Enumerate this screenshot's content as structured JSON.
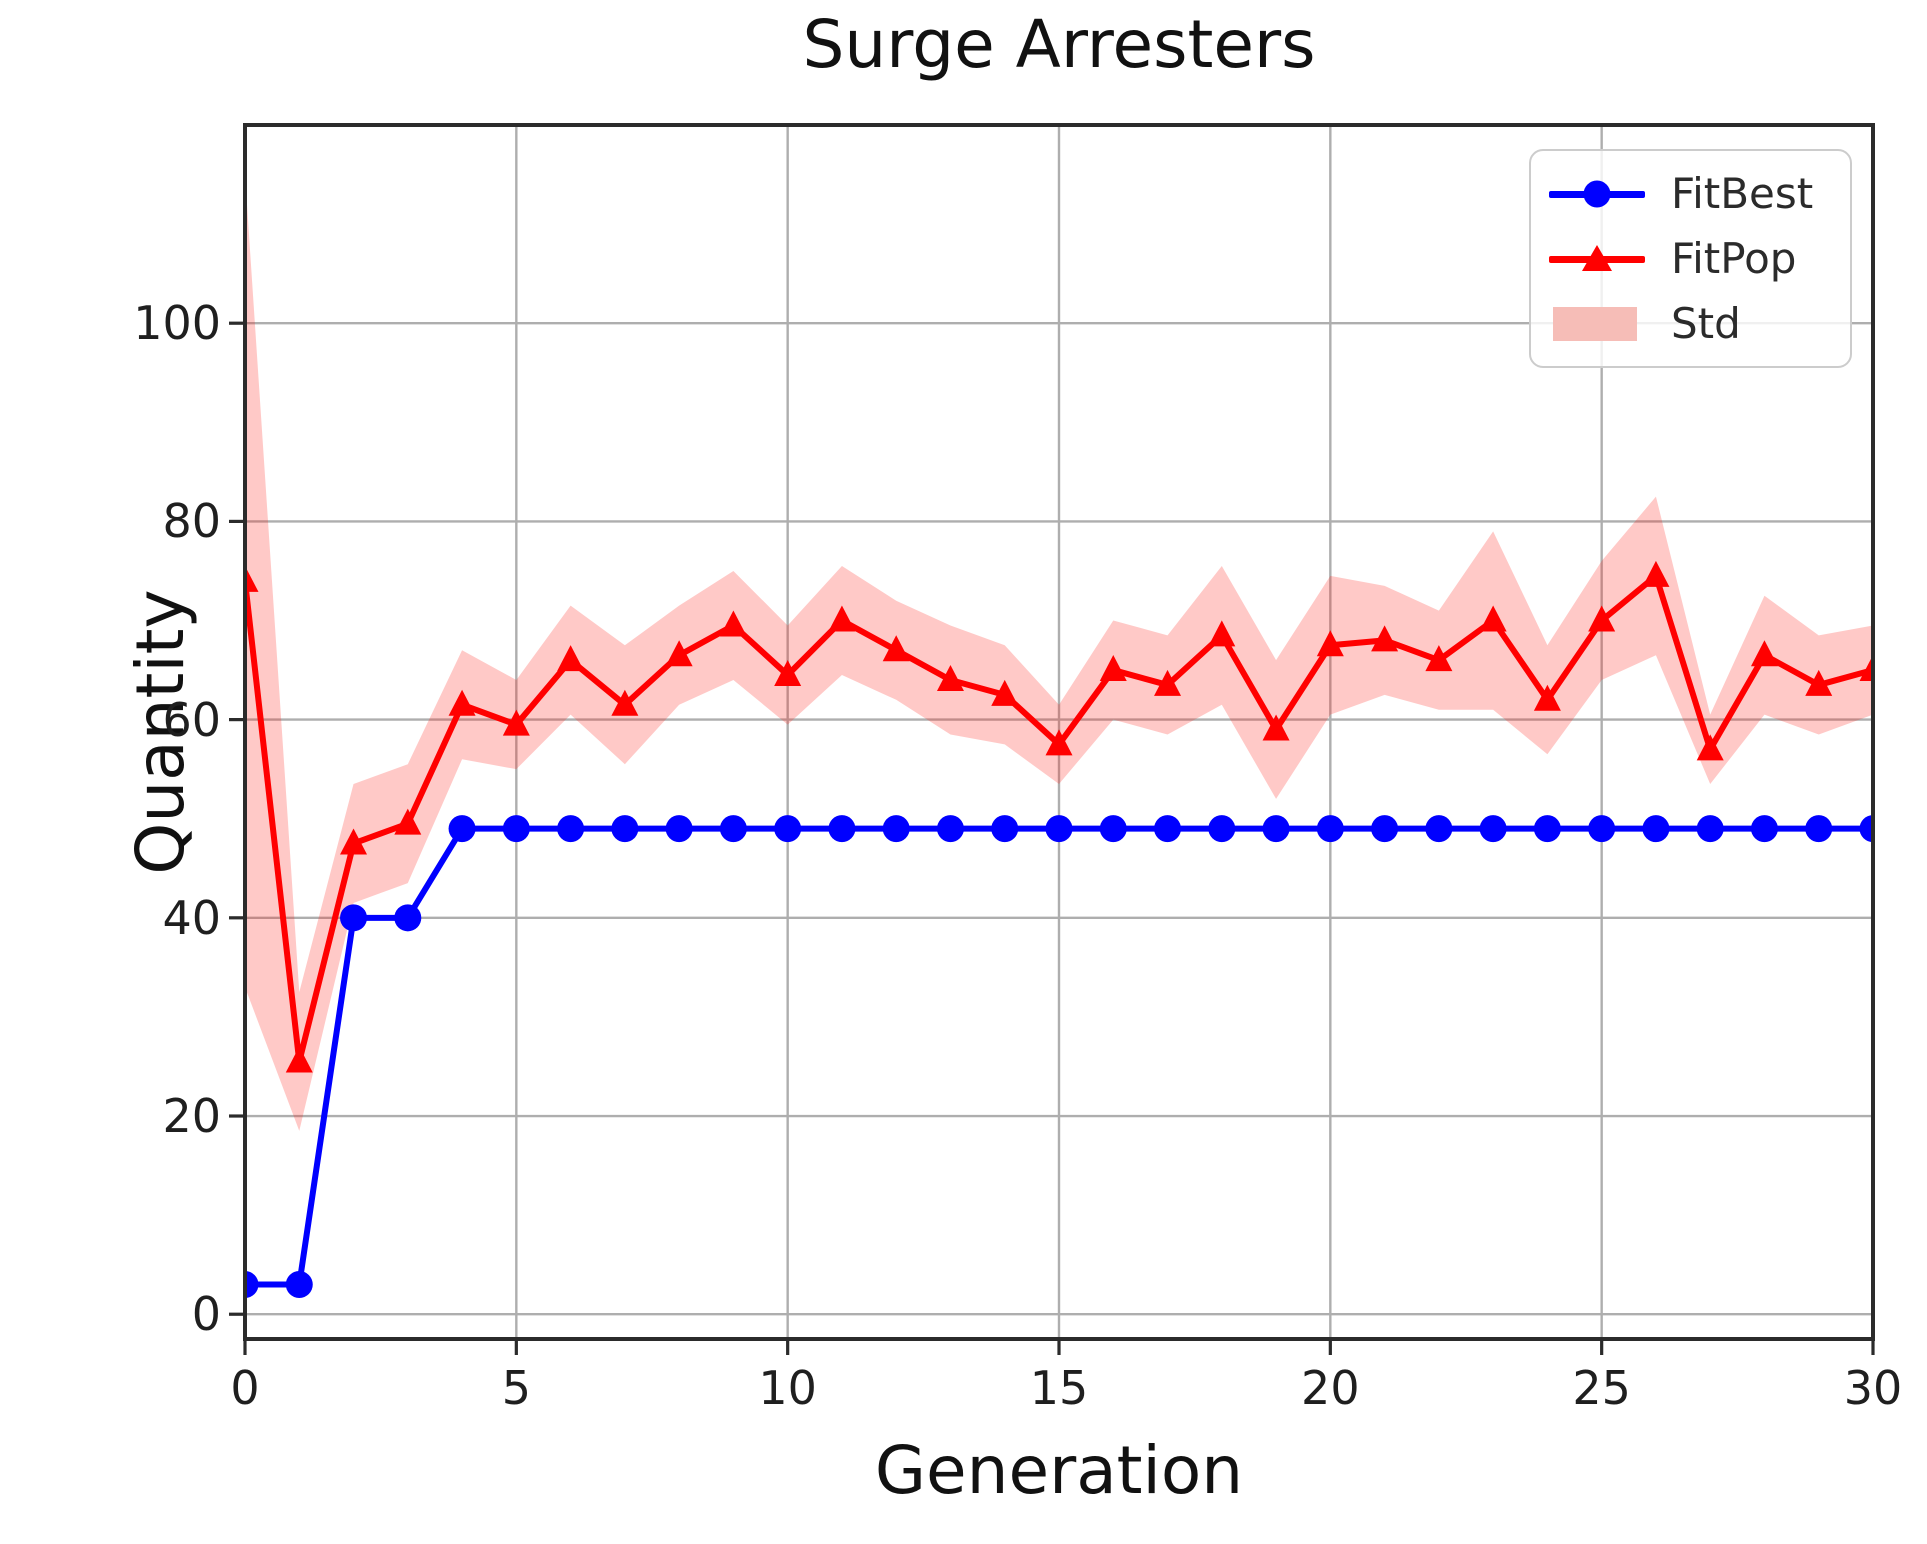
{
  "figure": {
    "title": "Surge Arresters"
  },
  "axes": {
    "xlabel": "Generation",
    "ylabel": "Quantity"
  },
  "legend": {
    "items": [
      {
        "label": "FitBest",
        "marker": "circle-line",
        "color": "#0000ff"
      },
      {
        "label": "FitPop",
        "marker": "triangle-line",
        "color": "#ff0000"
      },
      {
        "label": "Std",
        "marker": "patch",
        "color": "#f6bdb7"
      }
    ]
  },
  "colors": {
    "fitbest": "#0000ff",
    "fitpop": "#ff0000",
    "band_fill": "#ff1e14",
    "band_opacity": 0.24,
    "grid": "#aeaeae",
    "spine": "#2b2b2b",
    "text": "#1f1f1f"
  },
  "chart_data": {
    "type": "line",
    "title": "Surge Arresters",
    "xlabel": "Generation",
    "ylabel": "Quantity",
    "xlim": [
      0,
      30
    ],
    "ylim": [
      -2.5,
      120
    ],
    "xticks": [
      0,
      5,
      10,
      15,
      20,
      25,
      30
    ],
    "yticks": [
      0,
      20,
      40,
      60,
      80,
      100
    ],
    "grid": true,
    "legend_position": "upper right",
    "x": [
      0,
      1,
      2,
      3,
      4,
      5,
      6,
      7,
      8,
      9,
      10,
      11,
      12,
      13,
      14,
      15,
      16,
      17,
      18,
      19,
      20,
      21,
      22,
      23,
      24,
      25,
      26,
      27,
      28,
      29,
      30
    ],
    "series": [
      {
        "name": "FitBest",
        "marker": "circle",
        "color": "#0000ff",
        "values": [
          3,
          3,
          40,
          40,
          49,
          49,
          49,
          49,
          49,
          49,
          49,
          49,
          49,
          49,
          49,
          49,
          49,
          49,
          49,
          49,
          49,
          49,
          49,
          49,
          49,
          49,
          49,
          49,
          49,
          49,
          49
        ]
      },
      {
        "name": "FitPop",
        "marker": "triangle-up",
        "color": "#ff0000",
        "values": [
          74,
          25.5,
          47.5,
          49.5,
          61.5,
          59.5,
          66,
          61.5,
          66.5,
          69.5,
          64.5,
          70,
          67,
          64,
          62.5,
          57.5,
          65,
          63.5,
          68.5,
          59,
          67.5,
          68,
          66,
          70,
          62,
          70,
          74.5,
          57,
          66.5,
          63.5,
          65
        ]
      }
    ],
    "band": {
      "name": "Std",
      "follows": "FitPop",
      "std": [
        41,
        7,
        6,
        6,
        5.5,
        4.5,
        5.5,
        6,
        5,
        5.5,
        5,
        5.5,
        5,
        5.5,
        5,
        4,
        5,
        5,
        7,
        7,
        7,
        5.5,
        5,
        9,
        5.5,
        6,
        8,
        3.5,
        6,
        5,
        4.5
      ]
    }
  }
}
